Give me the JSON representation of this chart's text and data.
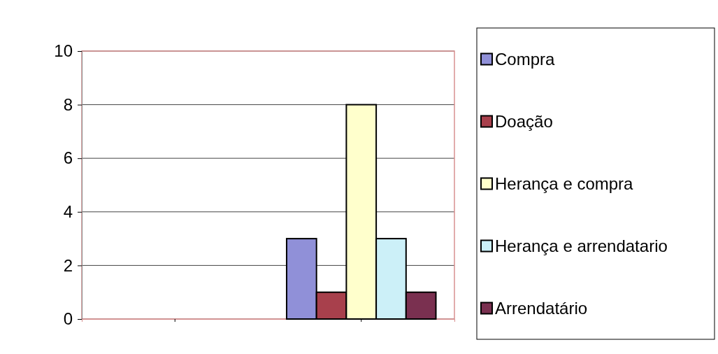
{
  "chart_data": {
    "type": "bar",
    "categories": [
      null,
      null
    ],
    "series": [
      {
        "name": "Compra",
        "color": "#9090d8",
        "values": [
          null,
          3
        ]
      },
      {
        "name": "Doação",
        "color": "#a8404c",
        "values": [
          null,
          1
        ]
      },
      {
        "name": "Herança e compra",
        "color": "#ffffcc",
        "values": [
          null,
          8
        ]
      },
      {
        "name": "Herança e arrendatario",
        "color": "#ccf0f8",
        "values": [
          null,
          3
        ]
      },
      {
        "name": "Arrendatário",
        "color": "#7a3050",
        "values": [
          null,
          1
        ]
      }
    ],
    "ylim": [
      0,
      10
    ],
    "yticks": [
      0,
      2,
      4,
      6,
      8,
      10
    ],
    "grid": "y",
    "legend": "right"
  }
}
